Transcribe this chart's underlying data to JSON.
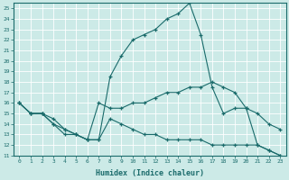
{
  "title": "",
  "xlabel": "Humidex (Indice chaleur)",
  "ylabel": "",
  "xlim": [
    -0.5,
    23.5
  ],
  "ylim": [
    11,
    25.5
  ],
  "yticks": [
    11,
    12,
    13,
    14,
    15,
    16,
    17,
    18,
    19,
    20,
    21,
    22,
    23,
    24,
    25
  ],
  "xticks": [
    0,
    1,
    2,
    3,
    4,
    5,
    6,
    7,
    8,
    9,
    10,
    11,
    12,
    13,
    14,
    15,
    16,
    17,
    18,
    19,
    20,
    21,
    22,
    23
  ],
  "bg_color": "#cceae7",
  "line_color": "#1a6b6b",
  "grid_color": "#ffffff",
  "lines": [
    {
      "x": [
        0,
        1,
        2,
        3,
        4,
        5,
        6,
        7,
        8,
        9,
        10,
        11,
        12,
        13,
        14,
        15,
        16,
        17,
        18,
        19,
        20,
        21,
        22,
        23
      ],
      "y": [
        16,
        15,
        15,
        14,
        13,
        13,
        12.5,
        12.5,
        18.5,
        20.5,
        22,
        22.5,
        23,
        24,
        24.5,
        25.5,
        22.5,
        17.5,
        15,
        15.5,
        15.5,
        12,
        11.5,
        11
      ]
    },
    {
      "x": [
        0,
        1,
        2,
        3,
        4,
        5,
        6,
        7,
        8,
        9,
        10,
        11,
        12,
        13,
        14,
        15,
        16,
        17,
        18,
        19,
        20,
        21,
        22,
        23
      ],
      "y": [
        16,
        15,
        15,
        14,
        13.5,
        13,
        12.5,
        16,
        15.5,
        15.5,
        16,
        16,
        16.5,
        17,
        17,
        17.5,
        17.5,
        18,
        17.5,
        17,
        15.5,
        15,
        14,
        13.5
      ]
    },
    {
      "x": [
        0,
        1,
        2,
        3,
        4,
        5,
        6,
        7,
        8,
        9,
        10,
        11,
        12,
        13,
        14,
        15,
        16,
        17,
        18,
        19,
        20,
        21,
        22,
        23
      ],
      "y": [
        16,
        15,
        15,
        14.5,
        13.5,
        13,
        12.5,
        12.5,
        14.5,
        14,
        13.5,
        13,
        13,
        12.5,
        12.5,
        12.5,
        12.5,
        12,
        12,
        12,
        12,
        12,
        11.5,
        11
      ]
    }
  ]
}
